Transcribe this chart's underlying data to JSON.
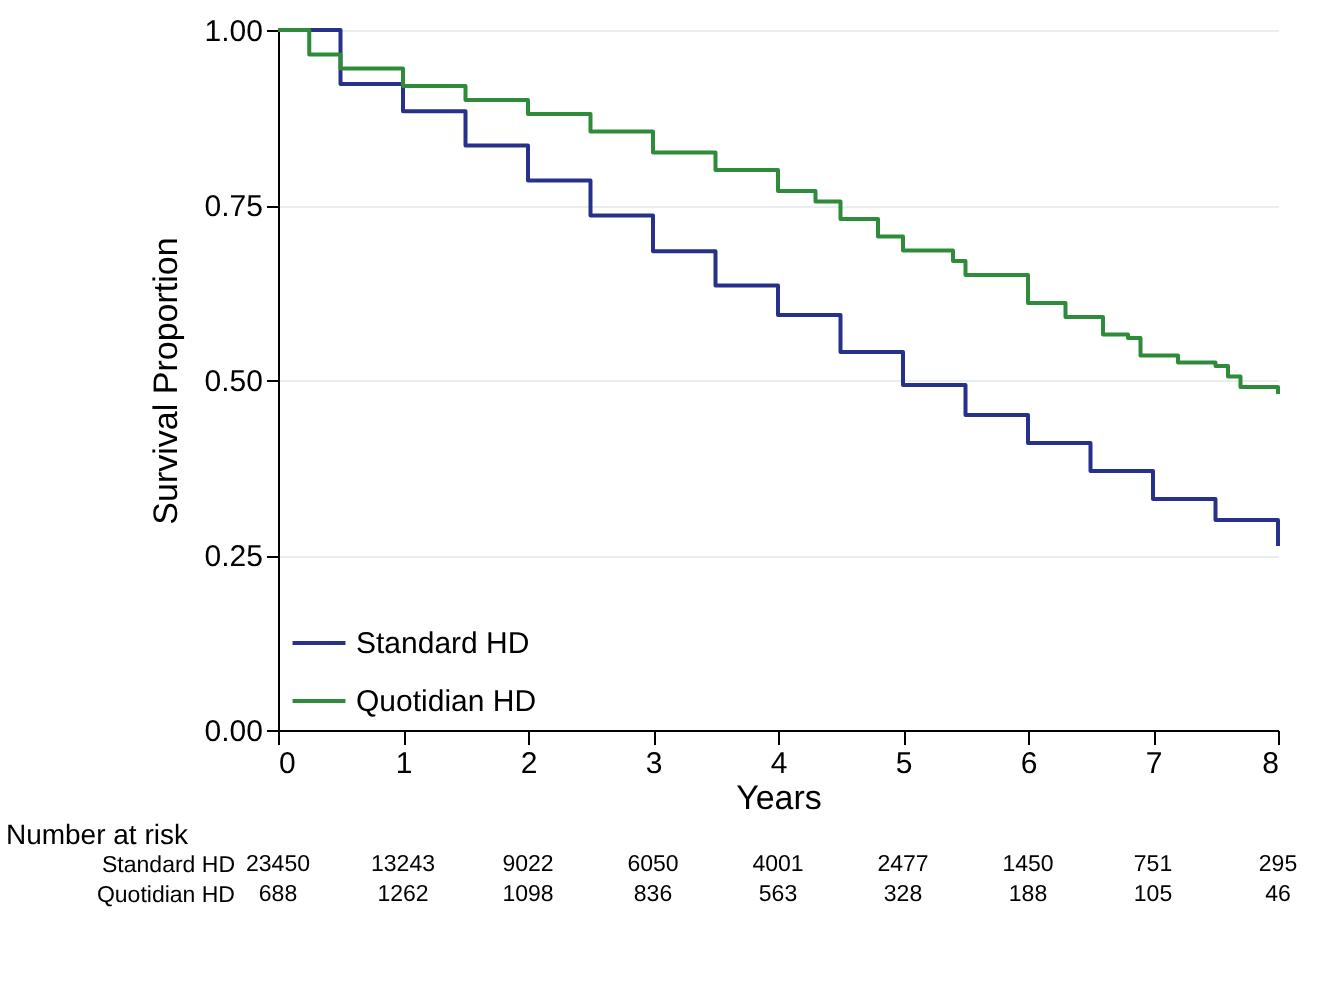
{
  "chart_data": {
    "type": "step",
    "xlabel": "Years",
    "ylabel": "Survival Proportion",
    "xlim": [
      0,
      8
    ],
    "xticks": [
      0,
      1,
      2,
      3,
      4,
      5,
      6,
      7,
      8
    ],
    "ylim": [
      0,
      1
    ],
    "yticks": [
      {
        "value": 0,
        "label": "0.00"
      },
      {
        "value": 0.25,
        "label": "0.25"
      },
      {
        "value": 0.5,
        "label": "0.50"
      },
      {
        "value": 0.75,
        "label": "0.75"
      },
      {
        "value": 1,
        "label": "1.00"
      }
    ],
    "grid": "y",
    "legend": "bottom left",
    "series": [
      {
        "name": "Standard HD",
        "color": "#27318b",
        "x": [
          0,
          0.5,
          1,
          1.5,
          2,
          2.5,
          3,
          3.5,
          4,
          4.5,
          5,
          5.5,
          6,
          6.5,
          7,
          7.5,
          8
        ],
        "values": [
          1,
          0.923,
          0.884,
          0.835,
          0.785,
          0.735,
          0.684,
          0.635,
          0.593,
          0.54,
          0.493,
          0.45,
          0.41,
          0.37,
          0.33,
          0.3,
          0.263
        ]
      },
      {
        "name": "Quotidian HD",
        "color": "#2e8b3a",
        "x": [
          0,
          0.25,
          0.5,
          1,
          1.5,
          2,
          2.5,
          3,
          3.5,
          4,
          4.3,
          4.5,
          4.8,
          5,
          5.4,
          5.5,
          6,
          6.3,
          6.6,
          6.8,
          6.9,
          7.2,
          7.5,
          7.6,
          7.7,
          8
        ],
        "values": [
          1,
          0.965,
          0.945,
          0.92,
          0.9,
          0.88,
          0.855,
          0.825,
          0.8,
          0.77,
          0.755,
          0.73,
          0.705,
          0.685,
          0.67,
          0.65,
          0.61,
          0.59,
          0.565,
          0.56,
          0.535,
          0.525,
          0.52,
          0.505,
          0.49,
          0.48
        ]
      }
    ],
    "annotations": [
      "Number at risk",
      "Standard HD",
      "23450",
      "13243",
      "9022",
      "6050",
      "4001",
      "2477",
      "1450",
      "751",
      "295",
      "Quotidian HD",
      "688",
      "1262",
      "1098",
      "836",
      "563",
      "328",
      "188",
      "105",
      "46"
    ]
  }
}
